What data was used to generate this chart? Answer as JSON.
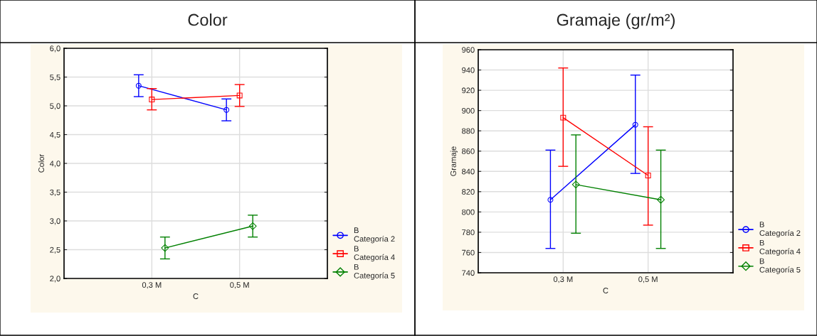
{
  "chart_data": [
    {
      "type": "line",
      "title": "Color",
      "xlabel": "C",
      "ylabel": "Color",
      "categories": [
        "0,3 M",
        "0,5 M"
      ],
      "ylim": [
        2.0,
        6.0
      ],
      "yticks": [
        {
          "value": 2.0,
          "label": "2,0"
        },
        {
          "value": 2.5,
          "label": "2,5"
        },
        {
          "value": 3.0,
          "label": "3,0"
        },
        {
          "value": 3.5,
          "label": "3,5"
        },
        {
          "value": 4.0,
          "label": "4,0"
        },
        {
          "value": 4.5,
          "label": "4,5"
        },
        {
          "value": 5.0,
          "label": "5,0"
        },
        {
          "value": 5.5,
          "label": "5,5"
        },
        {
          "value": 6.0,
          "label": "6,0"
        }
      ],
      "grid": true,
      "legend": "bottom right",
      "series": [
        {
          "name": "B\nCategoría 2",
          "color": "#0000ff",
          "marker": "circle",
          "values": [
            5.35,
            4.93
          ],
          "errors": [
            [
              5.16,
              5.54
            ],
            [
              4.74,
              5.12
            ]
          ]
        },
        {
          "name": "B\nCategoría 4",
          "color": "#ff0000",
          "marker": "square",
          "values": [
            5.11,
            5.18
          ],
          "errors": [
            [
              4.93,
              5.3
            ],
            [
              4.99,
              5.37
            ]
          ]
        },
        {
          "name": "B\nCategoría 5",
          "color": "#008000",
          "marker": "diamond",
          "values": [
            2.53,
            2.91
          ],
          "errors": [
            [
              2.34,
              2.72
            ],
            [
              2.72,
              3.1
            ]
          ]
        }
      ]
    },
    {
      "type": "line",
      "title": "Gramaje (gr/m²)",
      "xlabel": "C",
      "ylabel": "Gramaje",
      "categories": [
        "0,3 M",
        "0,5 M"
      ],
      "ylim": [
        740,
        960
      ],
      "yticks": [
        740,
        760,
        780,
        800,
        820,
        840,
        860,
        880,
        900,
        920,
        940,
        960
      ],
      "grid": true,
      "legend": "bottom right",
      "series": [
        {
          "name": "B\nCategoría 2",
          "color": "#0000ff",
          "marker": "circle",
          "values": [
            812,
            886
          ],
          "errors": [
            [
              764,
              861
            ],
            [
              838,
              935
            ]
          ]
        },
        {
          "name": "B\nCategoría 4",
          "color": "#ff0000",
          "marker": "square",
          "values": [
            893,
            836
          ],
          "errors": [
            [
              845,
              942
            ],
            [
              787,
              884
            ]
          ]
        },
        {
          "name": "B\nCategoría 5",
          "color": "#008000",
          "marker": "diamond",
          "values": [
            827,
            812
          ],
          "errors": [
            [
              779,
              876
            ],
            [
              764,
              861
            ]
          ]
        }
      ]
    }
  ]
}
